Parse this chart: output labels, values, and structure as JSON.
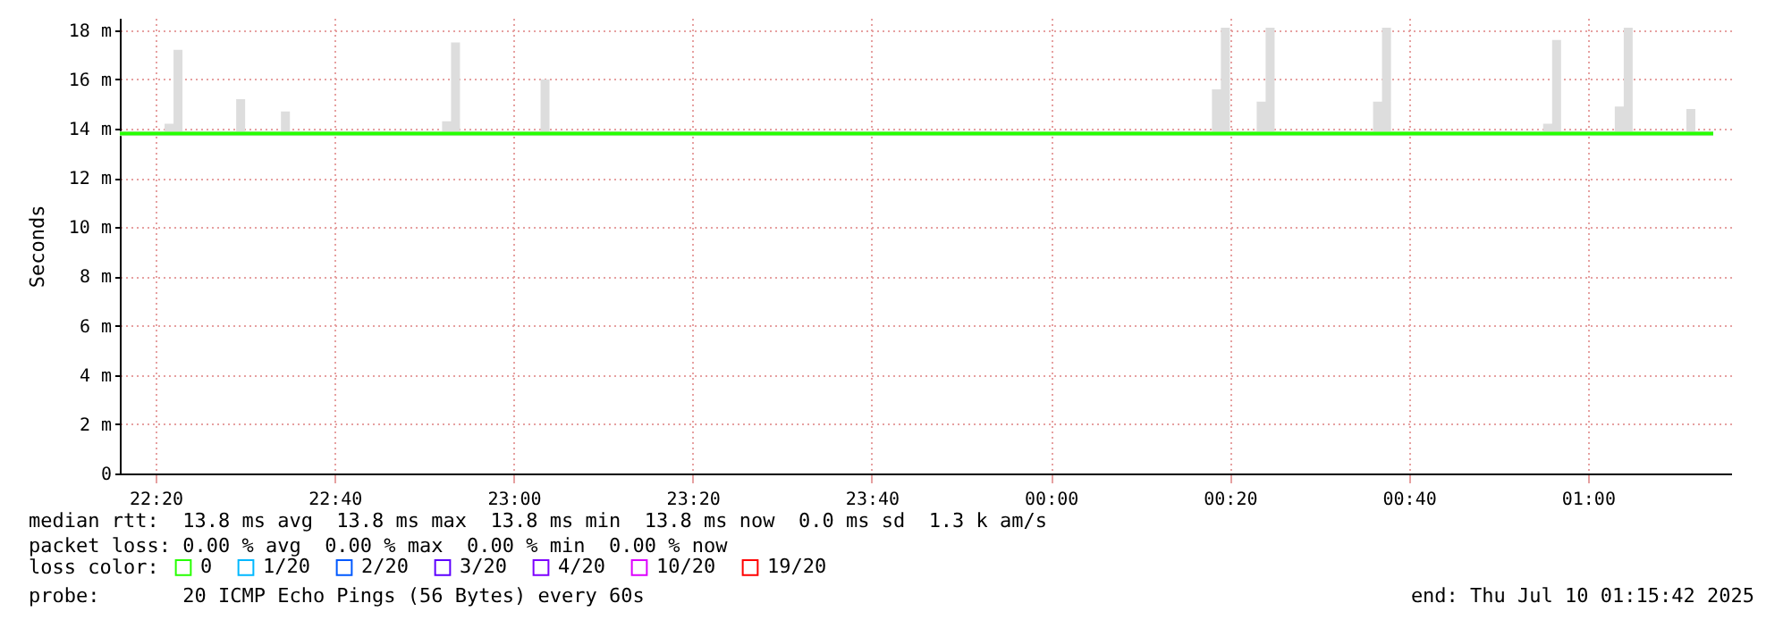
{
  "chart_data": {
    "type": "line",
    "ylabel": "Seconds",
    "legend_title": "loss color:",
    "legend": "bottom",
    "grid": true,
    "xlim": [
      "2025-07-09T22:16",
      "2025-07-10T01:16"
    ],
    "xticks": [
      {
        "value": "2025-07-09T22:20",
        "label": "22:20"
      },
      {
        "value": "2025-07-09T22:40",
        "label": "22:40"
      },
      {
        "value": "2025-07-09T23:00",
        "label": "23:00"
      },
      {
        "value": "2025-07-09T23:20",
        "label": "23:20"
      },
      {
        "value": "2025-07-09T23:40",
        "label": "23:40"
      },
      {
        "value": "2025-07-10T00:00",
        "label": "00:00"
      },
      {
        "value": "2025-07-10T00:20",
        "label": "00:20"
      },
      {
        "value": "2025-07-10T00:40",
        "label": "00:40"
      },
      {
        "value": "2025-07-10T01:00",
        "label": "01:00"
      }
    ],
    "ylim": [
      0,
      18.5
    ],
    "yticks": [
      0,
      {
        "value": 2,
        "label": "2 m"
      },
      {
        "value": 4,
        "label": "4 m"
      },
      {
        "value": 6,
        "label": "6 m"
      },
      {
        "value": 8,
        "label": "8 m"
      },
      {
        "value": 10,
        "label": "10 m"
      },
      {
        "value": 12,
        "label": "12 m"
      },
      {
        "value": 14,
        "label": "14 m"
      },
      {
        "value": 16,
        "label": "16 m"
      },
      {
        "value": 18,
        "label": "18 m"
      }
    ],
    "series": [
      {
        "name": "0",
        "color": "#26ff00",
        "x": [
          "2025-07-09T22:16",
          "2025-07-09T22:21",
          "2025-07-09T22:22",
          "2025-07-09T22:23",
          "2025-07-09T22:29",
          "2025-07-09T22:30",
          "2025-07-09T22:34",
          "2025-07-09T22:35",
          "2025-07-09T22:52",
          "2025-07-09T22:53",
          "2025-07-09T22:54",
          "2025-07-09T23:03",
          "2025-07-09T23:04",
          "2025-07-10T00:18",
          "2025-07-10T00:19",
          "2025-07-10T00:20",
          "2025-07-10T00:23",
          "2025-07-10T00:24",
          "2025-07-10T00:25",
          "2025-07-10T00:36",
          "2025-07-10T00:37",
          "2025-07-10T00:38",
          "2025-07-10T00:55",
          "2025-07-10T00:56",
          "2025-07-10T00:57",
          "2025-07-10T01:03",
          "2025-07-10T01:04",
          "2025-07-10T01:05",
          "2025-07-10T01:11",
          "2025-07-10T01:12",
          "2025-07-10T01:14"
        ],
        "values": [
          13.8,
          13.8,
          13.8,
          13.8,
          13.8,
          13.8,
          13.8,
          13.8,
          13.8,
          13.8,
          13.8,
          13.8,
          13.8,
          13.8,
          13.8,
          13.8,
          13.8,
          13.8,
          13.8,
          13.8,
          13.8,
          13.8,
          13.8,
          13.8,
          13.8,
          13.8,
          13.8,
          13.8,
          13.8,
          13.8,
          13.8
        ],
        "lower": [
          13.7,
          13.7,
          13.7,
          13.7,
          13.7,
          13.7,
          13.7,
          13.7,
          13.7,
          13.7,
          13.7,
          13.7,
          13.7,
          13.7,
          13.7,
          13.7,
          13.7,
          13.7,
          13.7,
          13.7,
          13.7,
          13.7,
          13.7,
          13.7,
          13.7,
          13.7,
          13.7,
          13.7,
          13.7,
          13.7,
          13.7
        ],
        "upper": [
          13.9,
          14.2,
          17.2,
          13.9,
          15.2,
          13.9,
          14.7,
          13.9,
          14.3,
          17.5,
          13.9,
          16.0,
          13.9,
          15.6,
          18.1,
          13.9,
          15.1,
          18.1,
          13.9,
          15.1,
          18.1,
          13.9,
          14.2,
          17.6,
          13.9,
          14.9,
          18.1,
          13.9,
          14.8,
          13.9,
          13.9
        ]
      },
      {
        "name": "1/20",
        "color": "#00b8ff"
      },
      {
        "name": "2/20",
        "color": "#0059ff"
      },
      {
        "name": "3/20",
        "color": "#5e00ff"
      },
      {
        "name": "4/20",
        "color": "#7e00ff"
      },
      {
        "name": "10/20",
        "color": "#dd00ff"
      },
      {
        "name": "19/20",
        "color": "#ff0000"
      }
    ],
    "annotations": [
      "median rtt:  13.8 ms avg  13.8 ms max  13.8 ms min  13.8 ms now  0.0 ms sd  1.3 k am/s",
      "packet loss: 0.00 % avg  0.00 % max  0.00 % min  0.00 % now",
      "probe:       20 ICMP Echo Pings (56 Bytes) every 60s",
      "end: Thu Jul 10 01:15:42 2025"
    ]
  }
}
